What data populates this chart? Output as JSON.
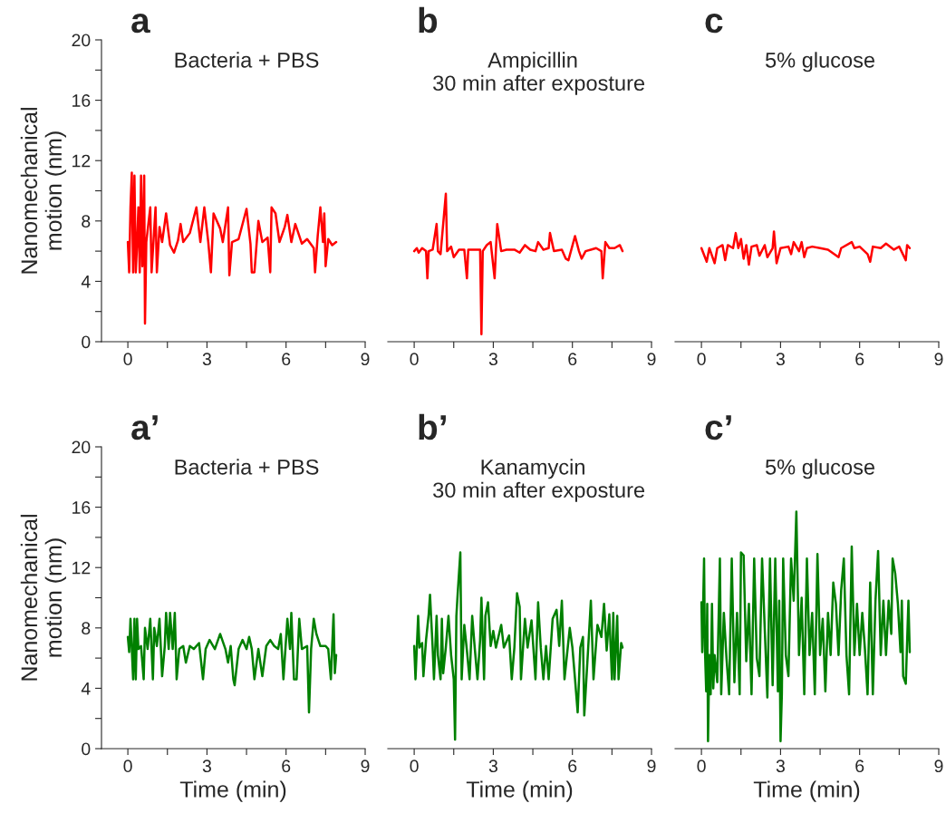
{
  "chart_data": [
    {
      "type": "line",
      "title": "a",
      "subtitle": "Bacteria + PBS",
      "ylabel": "Nanomechanical\nmotion (nm)",
      "xlim": [
        -1,
        9
      ],
      "xticks": [
        0,
        {
          "value": 1.5,
          "label": null
        },
        3,
        {
          "value": 4.5,
          "label": null
        },
        6,
        {
          "value": 7.5,
          "label": null
        },
        9
      ],
      "ylim": [
        0,
        20
      ],
      "yticks": [
        0,
        {
          "value": 2,
          "label": null
        },
        4,
        {
          "value": 6,
          "label": null
        },
        8,
        {
          "value": 10,
          "label": null
        },
        12,
        {
          "value": 14,
          "label": null
        },
        16,
        {
          "value": 18,
          "label": null
        },
        20
      ],
      "grid": false,
      "legend": false,
      "series": [
        {
          "color": "#ff0000",
          "x": [
            0,
            0.05,
            0.1,
            0.15,
            0.2,
            0.25,
            0.3,
            0.35,
            0.4,
            0.45,
            0.5,
            0.55,
            0.62,
            0.65,
            0.7,
            0.85,
            0.9,
            1.05,
            1.1,
            1.2,
            1.3,
            1.45,
            1.6,
            1.75,
            1.9,
            2.0,
            2.1,
            2.35,
            2.6,
            2.75,
            2.9,
            3.05,
            3.15,
            3.25,
            3.5,
            3.6,
            3.8,
            3.85,
            3.95,
            4.2,
            4.5,
            4.65,
            4.7,
            4.8,
            4.95,
            5.1,
            5.3,
            5.4,
            5.45,
            5.6,
            5.75,
            5.95,
            6.05,
            6.2,
            6.35,
            6.6,
            6.8,
            7.05,
            7.1,
            7.2,
            7.3,
            7.4,
            7.45,
            7.5,
            7.6,
            7.75,
            7.9
          ],
          "values": [
            6.6,
            4.6,
            8.9,
            11.2,
            4.6,
            11.0,
            4.6,
            6.5,
            8.9,
            4.6,
            11.0,
            5.0,
            11.0,
            1.2,
            6.6,
            8.9,
            4.6,
            8.9,
            4.6,
            7.6,
            6.6,
            8.5,
            6.4,
            5.9,
            6.7,
            7.8,
            6.6,
            7.2,
            8.9,
            6.6,
            8.9,
            6.6,
            4.6,
            8.5,
            7.5,
            6.6,
            8.9,
            4.4,
            6.6,
            6.8,
            8.8,
            6.5,
            4.6,
            4.6,
            8.0,
            6.6,
            6.9,
            4.6,
            8.9,
            8.5,
            6.6,
            7.6,
            8.4,
            6.6,
            7.8,
            6.5,
            6.8,
            6.2,
            4.6,
            7.0,
            8.9,
            6.6,
            8.5,
            5.0,
            6.8,
            6.4,
            6.6
          ]
        }
      ]
    },
    {
      "type": "line",
      "title": "b",
      "subtitle": "Ampicillin\n  30 min after exposture",
      "tick_labels": "x",
      "xlim": [
        -1,
        9
      ],
      "xticks": [
        0,
        {
          "value": 1.5,
          "label": null
        },
        3,
        {
          "value": 4.5,
          "label": null
        },
        6,
        {
          "value": 7.5,
          "label": null
        },
        9
      ],
      "ylim": [
        0,
        20
      ],
      "grid": false,
      "legend": false,
      "series": [
        {
          "color": "#ff0000",
          "x": [
            0,
            0.1,
            0.17,
            0.3,
            0.45,
            0.5,
            0.55,
            0.7,
            0.85,
            0.9,
            1.0,
            1.2,
            1.25,
            1.4,
            1.5,
            1.7,
            1.9,
            2.0,
            2.05,
            2.3,
            2.5,
            2.55,
            2.6,
            2.75,
            2.9,
            3.05,
            3.1,
            3.15,
            3.3,
            3.5,
            3.8,
            4.0,
            4.2,
            4.4,
            4.6,
            4.7,
            4.9,
            5.1,
            5.15,
            5.3,
            5.6,
            5.75,
            5.85,
            6.1,
            6.25,
            6.35,
            6.5,
            6.7,
            6.9,
            7.1,
            7.15,
            7.25,
            7.4,
            7.6,
            7.8,
            7.9
          ],
          "values": [
            6.0,
            6.2,
            5.9,
            6.2,
            6.0,
            4.2,
            6.0,
            6.1,
            7.8,
            6.0,
            5.8,
            9.8,
            6.0,
            6.3,
            5.6,
            6.1,
            6.1,
            4.2,
            6.1,
            6.1,
            6.1,
            0.5,
            6.0,
            6.4,
            6.6,
            4.2,
            6.1,
            7.8,
            6.0,
            6.1,
            6.1,
            5.9,
            6.4,
            6.1,
            6.0,
            6.6,
            6.1,
            6.2,
            7.2,
            6.0,
            6.1,
            5.5,
            5.4,
            7.0,
            6.0,
            5.5,
            6.0,
            6.1,
            6.2,
            6.0,
            4.2,
            6.6,
            6.2,
            6.2,
            6.4,
            6.0
          ]
        }
      ]
    },
    {
      "type": "line",
      "title": "c",
      "subtitle": "5% glucose",
      "tick_labels": "x",
      "xlim": [
        -1,
        9
      ],
      "xticks": [
        0,
        {
          "value": 1.5,
          "label": null
        },
        3,
        {
          "value": 4.5,
          "label": null
        },
        6,
        {
          "value": 7.5,
          "label": null
        },
        9
      ],
      "ylim": [
        0,
        20
      ],
      "grid": false,
      "legend": false,
      "series": [
        {
          "color": "#ff0000",
          "x": [
            0,
            0.2,
            0.3,
            0.5,
            0.6,
            0.8,
            0.9,
            1.0,
            1.2,
            1.3,
            1.4,
            1.5,
            1.6,
            1.7,
            1.8,
            1.9,
            2.1,
            2.2,
            2.4,
            2.5,
            2.7,
            2.75,
            2.85,
            3.0,
            3.3,
            3.4,
            3.5,
            3.7,
            3.8,
            3.9,
            4.0,
            4.2,
            4.5,
            4.8,
            5.2,
            5.3,
            5.7,
            5.8,
            6.0,
            6.3,
            6.4,
            6.5,
            6.8,
            7.0,
            7.3,
            7.5,
            7.75,
            7.8,
            7.9
          ],
          "values": [
            6.2,
            5.3,
            6.2,
            5.2,
            6.2,
            6.4,
            5.4,
            6.4,
            6.2,
            7.2,
            6.2,
            6.8,
            5.5,
            6.4,
            5.1,
            6.3,
            6.4,
            5.7,
            6.4,
            5.6,
            6.2,
            7.3,
            5.2,
            6.2,
            6.3,
            5.8,
            6.6,
            6.0,
            6.6,
            5.6,
            6.2,
            6.3,
            6.2,
            6.1,
            5.6,
            6.2,
            6.6,
            6.2,
            6.3,
            5.8,
            5.3,
            6.3,
            6.2,
            6.5,
            6.1,
            6.3,
            5.4,
            6.4,
            6.2
          ]
        }
      ]
    },
    {
      "type": "line",
      "title": "a’",
      "subtitle": "Bacteria + PBS",
      "ylabel": "Nanomechanical\nmotion (nm)",
      "xlabel": "Time (min)",
      "xlim": [
        -1,
        9
      ],
      "xticks": [
        0,
        {
          "value": 1.5,
          "label": null
        },
        3,
        {
          "value": 4.5,
          "label": null
        },
        6,
        {
          "value": 7.5,
          "label": null
        },
        9
      ],
      "ylim": [
        0,
        20
      ],
      "yticks": [
        0,
        {
          "value": 2,
          "label": null
        },
        4,
        {
          "value": 6,
          "label": null
        },
        8,
        {
          "value": 10,
          "label": null
        },
        12,
        {
          "value": 14,
          "label": null
        },
        16,
        {
          "value": 18,
          "label": null
        },
        20
      ],
      "grid": false,
      "legend": false,
      "series": [
        {
          "color": "#008000",
          "x": [
            0,
            0.05,
            0.1,
            0.15,
            0.2,
            0.25,
            0.3,
            0.35,
            0.4,
            0.5,
            0.6,
            0.65,
            0.75,
            0.85,
            0.95,
            1.0,
            1.1,
            1.2,
            1.3,
            1.4,
            1.45,
            1.55,
            1.6,
            1.7,
            1.78,
            1.85,
            1.95,
            2.1,
            2.2,
            2.35,
            2.5,
            2.7,
            2.85,
            2.95,
            3.1,
            3.3,
            3.5,
            3.7,
            3.8,
            3.9,
            4.0,
            4.05,
            4.2,
            4.35,
            4.5,
            4.6,
            4.7,
            4.8,
            4.95,
            5.1,
            5.25,
            5.4,
            5.55,
            5.7,
            5.8,
            5.9,
            6.05,
            6.15,
            6.2,
            6.3,
            6.4,
            6.5,
            6.6,
            6.8,
            6.87,
            6.95,
            7.05,
            7.15,
            7.3,
            7.5,
            7.6,
            7.7,
            7.8,
            7.85,
            7.9
          ],
          "values": [
            7.4,
            6.4,
            8.6,
            6.6,
            4.6,
            8.6,
            4.6,
            8.6,
            6.6,
            6.8,
            4.6,
            8.0,
            6.6,
            8.6,
            4.6,
            8.0,
            6.8,
            8.6,
            4.8,
            6.8,
            9.0,
            6.6,
            9.0,
            6.6,
            9.0,
            4.6,
            6.6,
            6.8,
            5.7,
            6.8,
            6.6,
            7.0,
            4.6,
            6.6,
            7.2,
            6.6,
            7.6,
            6.6,
            5.7,
            6.8,
            4.6,
            4.2,
            6.6,
            7.2,
            6.6,
            7.4,
            6.6,
            4.6,
            6.6,
            4.8,
            6.8,
            7.2,
            6.8,
            6.6,
            7.6,
            4.6,
            8.6,
            6.6,
            9.0,
            4.6,
            4.6,
            8.6,
            6.6,
            6.8,
            2.4,
            6.6,
            8.6,
            7.6,
            6.8,
            6.8,
            6.6,
            4.6,
            8.9,
            5.0,
            6.2
          ]
        }
      ]
    },
    {
      "type": "line",
      "title": "b’",
      "subtitle": "Kanamycin\n  30 min after exposture",
      "xlabel": "Time (min)",
      "tick_labels": "x",
      "xlim": [
        -1,
        9
      ],
      "xticks": [
        0,
        {
          "value": 1.5,
          "label": null
        },
        3,
        {
          "value": 4.5,
          "label": null
        },
        6,
        {
          "value": 7.5,
          "label": null
        },
        9
      ],
      "ylim": [
        0,
        20
      ],
      "grid": false,
      "legend": false,
      "series": [
        {
          "color": "#008000",
          "x": [
            0,
            0.05,
            0.1,
            0.15,
            0.2,
            0.3,
            0.35,
            0.45,
            0.55,
            0.6,
            0.7,
            0.75,
            0.85,
            0.9,
            1.0,
            1.05,
            1.1,
            1.2,
            1.3,
            1.4,
            1.5,
            1.55,
            1.6,
            1.65,
            1.75,
            1.8,
            1.9,
            2.0,
            2.1,
            2.2,
            2.3,
            2.4,
            2.5,
            2.55,
            2.65,
            2.7,
            2.8,
            2.9,
            3.0,
            3.1,
            3.3,
            3.4,
            3.6,
            3.7,
            3.8,
            3.9,
            4.0,
            4.05,
            4.2,
            4.3,
            4.45,
            4.6,
            4.7,
            4.8,
            4.9,
            5.0,
            5.1,
            5.25,
            5.4,
            5.5,
            5.6,
            5.7,
            5.9,
            6.0,
            6.1,
            6.2,
            6.3,
            6.4,
            6.45,
            6.6,
            6.7,
            6.8,
            6.95,
            7.1,
            7.2,
            7.3,
            7.4,
            7.5,
            7.55,
            7.6,
            7.7,
            7.75,
            7.85,
            7.9
          ],
          "values": [
            6.8,
            4.6,
            6.7,
            8.8,
            6.7,
            7.0,
            4.8,
            7.2,
            8.9,
            10.2,
            6.7,
            4.6,
            8.8,
            6.2,
            4.6,
            8.6,
            5.0,
            6.7,
            8.8,
            6.2,
            4.6,
            0.6,
            8.8,
            10.3,
            13.0,
            4.6,
            8.2,
            6.5,
            4.6,
            8.8,
            6.6,
            4.6,
            7.2,
            10.0,
            4.6,
            8.8,
            9.7,
            6.8,
            7.8,
            6.7,
            8.2,
            6.7,
            7.5,
            4.6,
            6.7,
            10.3,
            9.4,
            4.6,
            8.6,
            6.7,
            8.5,
            4.6,
            9.7,
            6.7,
            4.6,
            6.8,
            4.6,
            8.6,
            9.2,
            6.8,
            9.8,
            4.6,
            8.0,
            6.7,
            4.6,
            2.4,
            6.7,
            7.4,
            2.2,
            6.7,
            9.8,
            4.6,
            8.2,
            7.4,
            9.6,
            6.5,
            8.9,
            4.6,
            9.0,
            4.6,
            8.8,
            4.6,
            7.0,
            6.7
          ]
        }
      ]
    },
    {
      "type": "line",
      "title": "c’",
      "subtitle": "5% glucose",
      "xlabel": "Time (min)",
      "tick_labels": "x",
      "xlim": [
        -1,
        9
      ],
      "xticks": [
        0,
        {
          "value": 1.5,
          "label": null
        },
        3,
        {
          "value": 4.5,
          "label": null
        },
        6,
        {
          "value": 7.5,
          "label": null
        },
        9
      ],
      "ylim": [
        0,
        20
      ],
      "grid": false,
      "legend": false,
      "series": [
        {
          "color": "#008000",
          "x": [
            0,
            0.03,
            0.1,
            0.13,
            0.18,
            0.22,
            0.25,
            0.3,
            0.35,
            0.4,
            0.45,
            0.5,
            0.6,
            0.7,
            0.75,
            0.85,
            0.95,
            1.05,
            1.15,
            1.25,
            1.35,
            1.45,
            1.5,
            1.6,
            1.7,
            1.8,
            1.9,
            2.0,
            2.1,
            2.2,
            2.3,
            2.4,
            2.5,
            2.6,
            2.7,
            2.8,
            2.9,
            2.95,
            3.0,
            3.05,
            3.1,
            3.2,
            3.3,
            3.4,
            3.5,
            3.6,
            3.7,
            3.8,
            3.9,
            4.0,
            4.1,
            4.2,
            4.3,
            4.4,
            4.5,
            4.6,
            4.7,
            4.8,
            4.9,
            5.0,
            5.1,
            5.2,
            5.3,
            5.4,
            5.5,
            5.6,
            5.7,
            5.8,
            5.9,
            6.0,
            6.1,
            6.2,
            6.3,
            6.4,
            6.5,
            6.6,
            6.7,
            6.8,
            6.9,
            7.0,
            7.1,
            7.2,
            7.25,
            7.35,
            7.45,
            7.55,
            7.6,
            7.65,
            7.75,
            7.85,
            7.9
          ],
          "values": [
            9.7,
            6.4,
            12.6,
            6.8,
            3.8,
            9.6,
            0.5,
            6.2,
            3.6,
            9.6,
            4.0,
            6.2,
            4.4,
            12.6,
            3.6,
            9.0,
            6.0,
            3.6,
            12.6,
            4.4,
            9.0,
            3.6,
            13.0,
            12.8,
            5.8,
            9.6,
            3.6,
            12.6,
            6.0,
            4.8,
            12.6,
            8.0,
            3.4,
            12.6,
            4.2,
            12.6,
            3.8,
            9.8,
            0.5,
            3.6,
            12.6,
            6.2,
            4.8,
            12.6,
            9.8,
            15.7,
            6.2,
            10.0,
            3.6,
            12.6,
            6.2,
            9.0,
            3.6,
            12.9,
            6.2,
            8.6,
            3.8,
            9.0,
            6.2,
            11.0,
            9.6,
            6.2,
            10.5,
            12.6,
            6.2,
            3.6,
            13.4,
            6.2,
            9.6,
            6.2,
            9.0,
            6.6,
            3.6,
            11.0,
            3.6,
            9.8,
            13.1,
            6.2,
            9.8,
            6.2,
            9.8,
            7.6,
            12.6,
            11.6,
            9.6,
            6.4,
            9.8,
            4.8,
            4.3,
            9.8,
            6.4
          ]
        }
      ]
    }
  ]
}
